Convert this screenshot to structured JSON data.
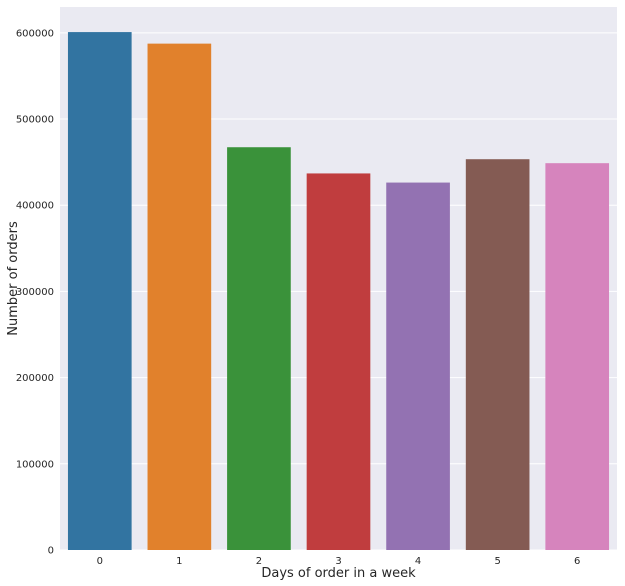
{
  "chart_data": {
    "type": "bar",
    "categories": [
      "0",
      "1",
      "2",
      "3",
      "4",
      "5",
      "6"
    ],
    "values": [
      600900,
      587500,
      467300,
      436900,
      426300,
      453400,
      448800
    ],
    "xlabel": "Days of order in a week",
    "ylabel": "Number of orders",
    "ylim": [
      0,
      630000
    ],
    "yticks": [
      0,
      100000,
      200000,
      300000,
      400000,
      500000,
      600000
    ],
    "ytick_labels": [
      "0",
      "100000",
      "200000",
      "300000",
      "400000",
      "500000",
      "600000"
    ],
    "grid": true,
    "style": {
      "background": "#eaeaf2",
      "grid_color": "#ffffff",
      "bar_colors": [
        "#3274a1",
        "#e1812c",
        "#3a923a",
        "#c03d3e",
        "#9372b2",
        "#845b53",
        "#d684bd"
      ]
    }
  }
}
